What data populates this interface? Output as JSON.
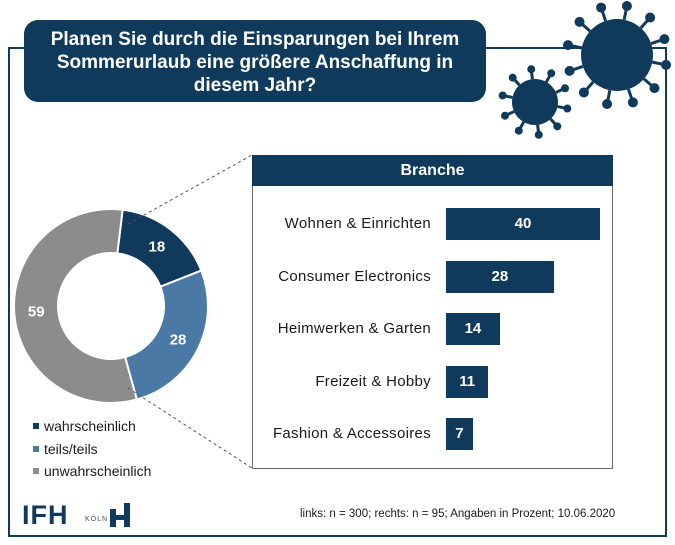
{
  "title_lines": [
    "Planen Sie durch die Einsparungen bei Ihrem",
    "Sommerurlaub eine größere Anschaffung in",
    "diesem Jahr?"
  ],
  "colors": {
    "navy": "#0f3a5c",
    "mid_blue": "#4a79a5",
    "grey": "#8c8c8c"
  },
  "icons": [
    "virus-icon",
    "ifh-logo-icon"
  ],
  "chart_data": [
    {
      "type": "pie",
      "variant": "donut",
      "slices": [
        {
          "label": "wahrscheinlich",
          "value": 18,
          "color": "#0f3a5c"
        },
        {
          "label": "teils/teils",
          "value": 28,
          "color": "#4a79a5"
        },
        {
          "label": "unwahrscheinlich",
          "value": 59,
          "color": "#8c8c8c"
        }
      ],
      "legend_position": "bottom-left"
    },
    {
      "type": "bar",
      "orientation": "horizontal",
      "title": "Branche",
      "categories": [
        "Wohnen & Einrichten",
        "Consumer Electronics",
        "Heimwerken & Garten",
        "Freizeit & Hobby",
        "Fashion & Accessoires"
      ],
      "values": [
        40,
        28,
        14,
        11,
        7
      ],
      "xlim": [
        0,
        40
      ],
      "grid": false,
      "color": "#0f3a5c"
    }
  ],
  "footnote": "links: n = 300; rechts: n = 95; Angaben in Prozent; 10.06.2020",
  "logo": {
    "name": "IFH",
    "city": "KÖLN"
  }
}
